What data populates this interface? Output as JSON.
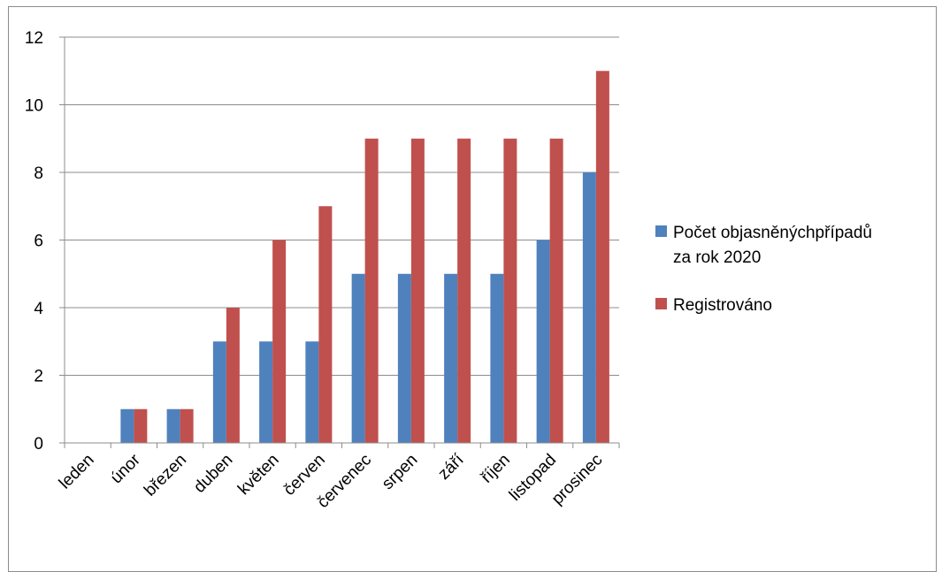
{
  "chart_data": {
    "type": "bar",
    "categories": [
      "leden",
      "únor",
      "březen",
      "duben",
      "květen",
      "červen",
      "červenec",
      "srpen",
      "září",
      "říjen",
      "listopad",
      "prosinec"
    ],
    "series": [
      {
        "name_lines": [
          "Počet objasněnýchpřípadů",
          "za rok 2020"
        ],
        "color": "#4f81bd",
        "values": [
          0,
          1,
          1,
          3,
          3,
          3,
          5,
          5,
          5,
          5,
          6,
          8
        ]
      },
      {
        "name_lines": [
          "Registrováno"
        ],
        "color": "#c0504d",
        "values": [
          0,
          1,
          1,
          4,
          6,
          7,
          9,
          9,
          9,
          9,
          9,
          11
        ]
      }
    ],
    "ylim": [
      0,
      12
    ],
    "yticks": [
      0,
      2,
      4,
      6,
      8,
      10,
      12
    ],
    "grid": true,
    "legend": "right"
  }
}
